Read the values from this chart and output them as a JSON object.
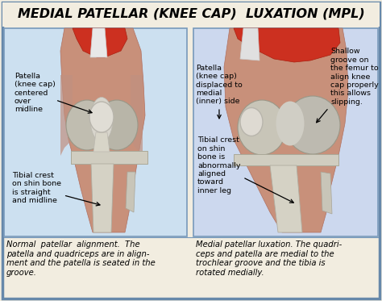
{
  "title": "MEDIAL PATELLAR (KNEE CAP)  LUXATION (MPL)",
  "title_fontsize": 11.5,
  "bg_color": "#f2ede0",
  "outer_border_color": "#6688aa",
  "left_panel_bg": "#cce0f0",
  "right_panel_bg": "#ccd8ee",
  "left_caption": "Normal  patellar  alignment.  The\npatella and quadriceps are in align-\nment and the patella is seated in the\ngroove.",
  "right_caption": "Medial patellar luxation. The quadri-\nceps and patella are medial to the\ntrochlear groove and the tibia is\nrotated medially.",
  "caption_fontsize": 7.2,
  "annotation_fontsize": 6.8,
  "panel_border_color": "#7799bb"
}
